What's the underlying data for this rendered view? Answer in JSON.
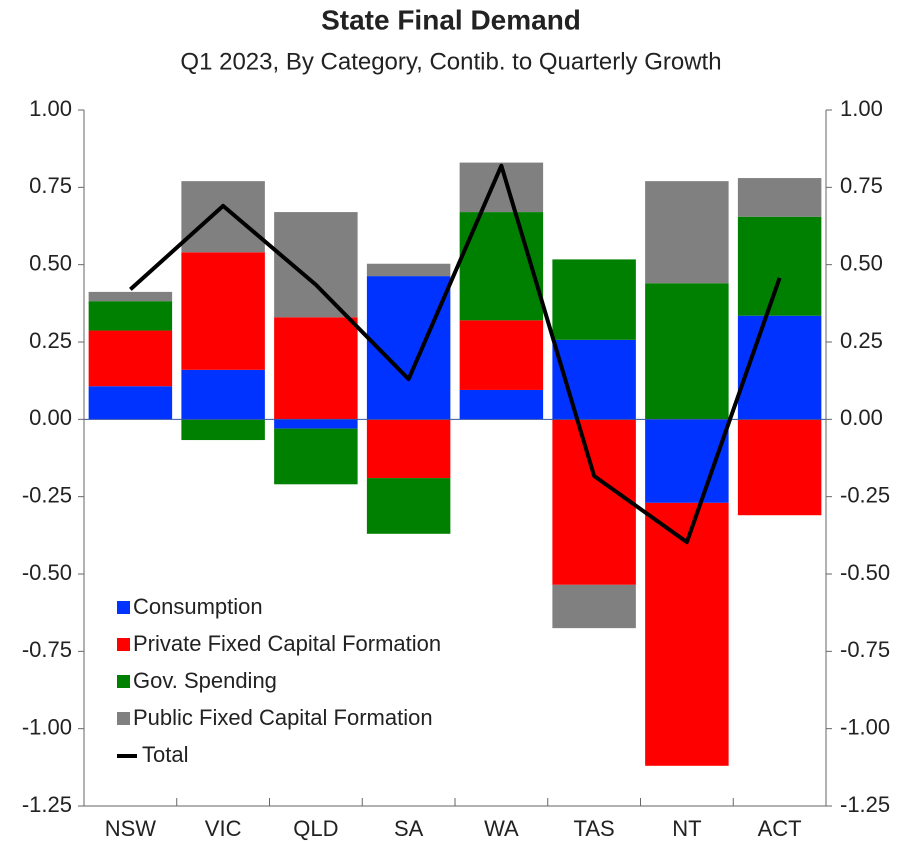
{
  "chart_data": {
    "type": "bar",
    "stacked": true,
    "title": "State Final Demand",
    "subtitle": "Q1 2023, By Category, Contib. to Quarterly Growth",
    "categories": [
      "NSW",
      "VIC",
      "QLD",
      "SA",
      "WA",
      "TAS",
      "NT",
      "ACT"
    ],
    "series": [
      {
        "name": "Consumption",
        "color": "#0033ff",
        "values": [
          0.107,
          0.16,
          -0.03,
          0.463,
          0.095,
          0.257,
          -0.27,
          0.335
        ]
      },
      {
        "name": "Private Fixed Capital Formation",
        "color": "#ff0000",
        "values": [
          0.18,
          0.38,
          0.33,
          -0.19,
          0.225,
          -0.535,
          -0.85,
          -0.31
        ]
      },
      {
        "name": "Gov. Spending",
        "color": "#008000",
        "values": [
          0.095,
          -0.067,
          -0.18,
          -0.18,
          0.35,
          0.26,
          0.44,
          0.32
        ]
      },
      {
        "name": "Public Fixed Capital Formation",
        "color": "#808080",
        "values": [
          0.03,
          0.23,
          0.34,
          0.04,
          0.16,
          -0.14,
          0.33,
          0.125
        ]
      },
      {
        "name": "Total",
        "type": "line",
        "color": "#000000",
        "values": [
          0.42,
          0.69,
          0.435,
          0.13,
          0.82,
          -0.183,
          -0.397,
          0.457
        ]
      }
    ],
    "ylim": [
      -1.25,
      1.0
    ],
    "yticks": [
      {
        "value": 1,
        "label": "1.00"
      },
      0.75,
      {
        "value": 0.5,
        "label": "0.50"
      },
      0.25,
      {
        "value": 0,
        "label": "0.00"
      },
      -0.25,
      {
        "value": -0.5,
        "label": "-0.50"
      },
      -0.75,
      {
        "value": -1,
        "label": "-1.00"
      },
      -1.25
    ],
    "y2lim": [
      -1.25,
      1.0
    ],
    "y2ticks": [
      {
        "value": 1,
        "label": "1.00"
      },
      0.75,
      {
        "value": 0.5,
        "label": "0.50"
      },
      0.25,
      {
        "value": 0,
        "label": "0.00"
      },
      -0.25,
      {
        "value": -0.5,
        "label": "-0.50"
      },
      -0.75,
      {
        "value": -1,
        "label": "-1.00"
      },
      -1.25
    ],
    "legend": "lower left"
  }
}
